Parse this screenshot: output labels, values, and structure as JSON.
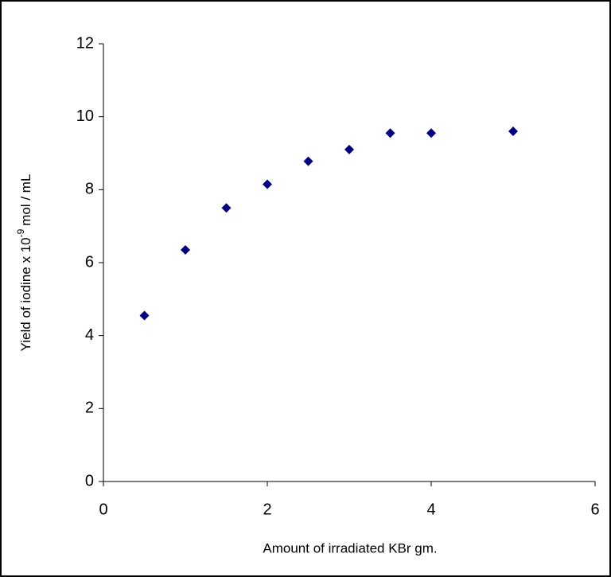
{
  "chart_data": {
    "type": "scatter",
    "x_label": "Amount of irradiated KBr gm.",
    "y_label": {
      "text": "Yield of iodine x 10",
      "superscript": "-9",
      "suffix": "mol / mL"
    },
    "x": [
      0.5,
      1,
      1.5,
      2,
      2.5,
      3,
      3.5,
      4,
      5
    ],
    "values": [
      4.55,
      6.35,
      7.5,
      8.15,
      8.78,
      9.1,
      9.55,
      9.55,
      9.6
    ],
    "color": "#000080",
    "marker": "diamond",
    "xlim": [
      0,
      6
    ],
    "xticks": [
      0,
      2,
      4,
      6
    ],
    "ylim": [
      0,
      12
    ],
    "yticks": [
      0,
      2,
      4,
      6,
      8,
      10,
      12
    ],
    "grid": false
  }
}
